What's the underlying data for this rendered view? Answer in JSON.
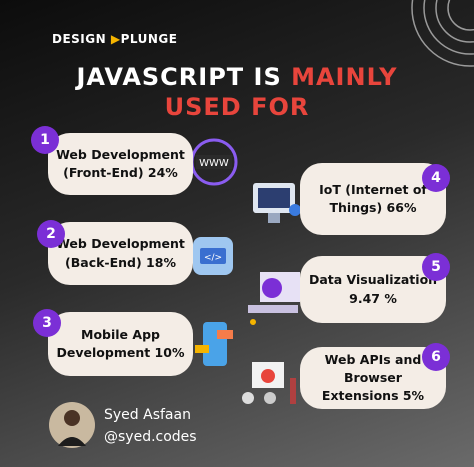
{
  "brand": {
    "left": "DESIGN",
    "right": "PLUNGE"
  },
  "title": {
    "line1_white": "JAVASCRIPT IS",
    "line1_red": "MAINLY",
    "line2": "USED FOR"
  },
  "items": [
    {
      "badge": "1",
      "lines": [
        "Web Development",
        "(Front-End)  24%"
      ]
    },
    {
      "badge": "2",
      "lines": [
        "Web Development",
        "(Back-End)  18%"
      ]
    },
    {
      "badge": "3",
      "lines": [
        "Mobile App",
        "Development  10%"
      ]
    },
    {
      "badge": "4",
      "lines": [
        "IoT (Internet of",
        "Things) 66%"
      ]
    },
    {
      "badge": "5",
      "lines": [
        "Data Visualization",
        "9.47 %"
      ]
    },
    {
      "badge": "6",
      "lines": [
        "Web APIs and Browser",
        "Extensions 5%"
      ]
    }
  ],
  "author": {
    "name": "Syed Asfaan",
    "handle": "@syed.codes"
  }
}
